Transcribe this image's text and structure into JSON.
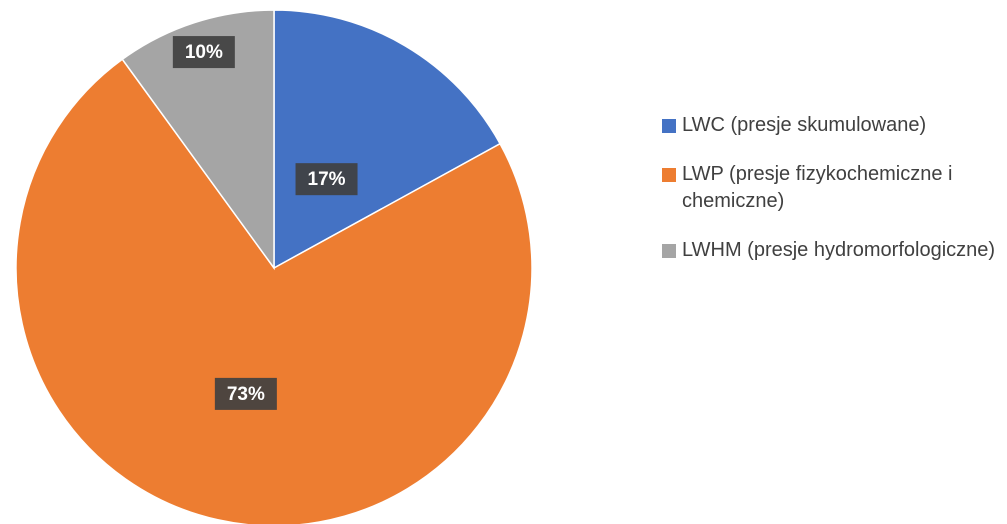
{
  "chart_data": {
    "type": "pie",
    "categories": [
      "LWC (presje skumulowane)",
      "LWP (presje fizykochemiczne i chemiczne)",
      "LWHM (presje hydromorfologiczne)"
    ],
    "values": [
      17,
      73,
      10
    ],
    "value_labels": [
      "17%",
      "73%",
      "10%"
    ],
    "colors": [
      "#4472c4",
      "#ed7d31",
      "#a5a5a5"
    ],
    "legend": "right"
  }
}
